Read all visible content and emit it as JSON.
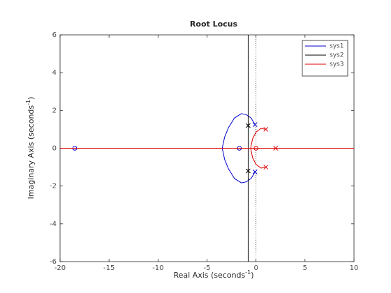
{
  "chart_data": {
    "type": "line",
    "title": "Root Locus",
    "xlabel": [
      "Real Axis (seconds",
      "-1",
      ")"
    ],
    "ylabel": [
      "Imaginary Axis (seconds",
      "-1",
      ")"
    ],
    "xlim": [
      -20,
      10
    ],
    "ylim": [
      -6,
      6
    ],
    "xticks": [
      -20,
      -15,
      -10,
      -5,
      0,
      5,
      10
    ],
    "yticks": [
      -6,
      -4,
      -2,
      0,
      2,
      4,
      6
    ],
    "legend": "top-right",
    "series": [
      {
        "name": "sys1",
        "color": "#0000cc",
        "x": [
          -0.1,
          -0.5,
          -1,
          -1.5,
          -2.2,
          -2.8,
          -3.2,
          -3.45,
          -3.2,
          -2.8,
          -2.2,
          -1.5,
          -1,
          -0.5,
          -0.1,
          null,
          -3.45,
          -1.7
        ],
        "y": [
          1.25,
          1.6,
          1.78,
          1.83,
          1.6,
          1.1,
          0.6,
          0,
          -0.6,
          -1.1,
          -1.6,
          -1.83,
          -1.78,
          -1.6,
          -1.25,
          null,
          0,
          0
        ],
        "poles_x": [
          -0.1,
          -0.1
        ],
        "poles_y": [
          1.25,
          -1.25
        ],
        "zeros_x": [
          -1.7,
          -18.5
        ],
        "zeros_y": [
          0,
          0
        ]
      },
      {
        "name": "sys2",
        "color": "#000000",
        "x": [
          -0.8,
          -0.8
        ],
        "y": [
          6,
          -6
        ],
        "poles_x": [
          -0.8,
          -0.8
        ],
        "poles_y": [
          1.2,
          -1.2
        ],
        "zeros_x": [],
        "zeros_y": []
      },
      {
        "name": "sys3",
        "color": "#dd0000",
        "x": [
          1,
          0.5,
          0,
          -0.35,
          -0.55,
          -0.35,
          0,
          0.5,
          1,
          null,
          -20,
          10
        ],
        "y": [
          1,
          1.05,
          0.85,
          0.5,
          0,
          -0.5,
          -0.85,
          -1.05,
          -1,
          null,
          0,
          0
        ],
        "poles_x": [
          1,
          1,
          2
        ],
        "poles_y": [
          1,
          -1,
          0
        ],
        "zeros_x": [
          0
        ],
        "zeros_y": [
          0
        ]
      }
    ]
  }
}
